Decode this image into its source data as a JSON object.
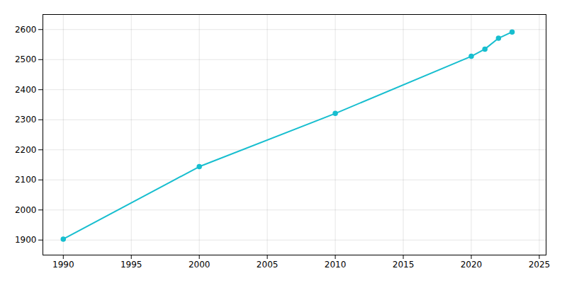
{
  "chart_data": {
    "type": "line",
    "x": [
      1990,
      2000,
      2010,
      2020,
      2021,
      2022,
      2023
    ],
    "values": [
      1903,
      2144,
      2321,
      2511,
      2535,
      2571,
      2592
    ],
    "color": "#17becf",
    "marker": "circle",
    "xlim": [
      1988.5,
      2025.5
    ],
    "xticks": [
      1990,
      1995,
      2000,
      2005,
      2010,
      2015,
      2020,
      2025
    ],
    "ylim": [
      1850,
      2650
    ],
    "yticks": [
      1900,
      2000,
      2100,
      2200,
      2300,
      2400,
      2500,
      2600
    ],
    "grid": true
  }
}
